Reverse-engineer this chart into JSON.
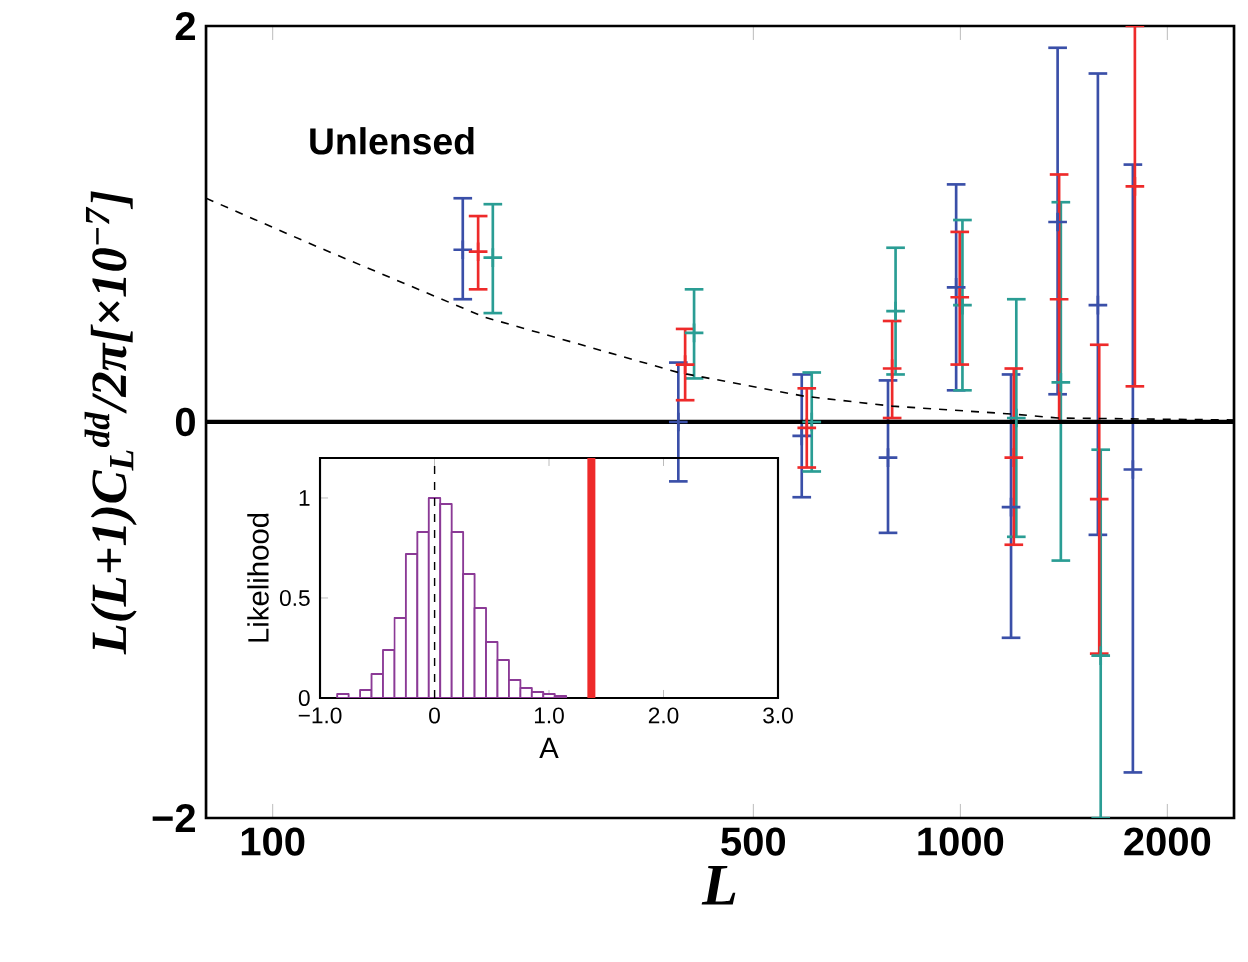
{
  "chart_data": [
    {
      "type": "scatter",
      "xlabel": "L",
      "ylabel": "L(L+1)C$_{L}$$^{dd}$/2π[×10$^{−7}$]",
      "log": "x",
      "xlim": [
        80,
        2500
      ],
      "ylim": [
        -2,
        2
      ],
      "xticks": [
        100,
        500,
        1000,
        2000
      ],
      "yticks": [
        {
          "value": -2,
          "label": "−2"
        },
        0,
        2
      ],
      "annotations": [
        "Unlensed"
      ],
      "ref_lines": [
        {
          "axis": "y",
          "value": 0,
          "color": "#000000"
        }
      ],
      "series": [
        {
          "color": "#3a4fa8",
          "marker": "cross",
          "x": [
            189,
            389,
            588,
            785,
            986,
            1185,
            1385,
            1585,
            1782
          ],
          "values": [
            0.87,
            0.0,
            -0.07,
            -0.18,
            0.68,
            -0.43,
            1.01,
            0.59,
            -0.24
          ],
          "errors": [
            [
              0.62,
              1.13
            ],
            [
              -0.3,
              0.3
            ],
            [
              -0.38,
              0.24
            ],
            [
              -0.56,
              0.21
            ],
            [
              0.16,
              1.2
            ],
            [
              -1.09,
              0.24
            ],
            [
              0.14,
              1.89
            ],
            [
              -0.57,
              1.76
            ],
            [
              -1.77,
              1.3
            ]
          ]
        },
        {
          "color": "#2a9d94",
          "marker": "cross",
          "x": [
            209,
            410,
            608,
            805,
            1007,
            1206,
            1400,
            1600
          ],
          "values": [
            0.83,
            0.45,
            0.0,
            0.56,
            0.59,
            0.02,
            0.2,
            -1.18
          ],
          "errors": [
            [
              0.55,
              1.1
            ],
            [
              0.22,
              0.67
            ],
            [
              -0.25,
              0.25
            ],
            [
              0.24,
              0.88
            ],
            [
              0.16,
              1.02
            ],
            [
              -0.58,
              0.62
            ],
            [
              -0.7,
              1.11
            ],
            [
              -2.0,
              -0.14
            ]
          ]
        },
        {
          "color": "#ee2a2a",
          "marker": "cross",
          "x": [
            199,
            398,
            598,
            796,
            998,
            1196,
            1392,
            1592,
            1794
          ],
          "values": [
            0.86,
            0.29,
            -0.03,
            0.27,
            0.63,
            -0.18,
            0.62,
            -0.39,
            1.19
          ],
          "errors": [
            [
              0.67,
              1.04
            ],
            [
              0.11,
              0.47
            ],
            [
              -0.23,
              0.17
            ],
            [
              0.02,
              0.51
            ],
            [
              0.29,
              0.96
            ],
            [
              -0.62,
              0.27
            ],
            [
              0.0,
              1.25
            ],
            [
              -1.17,
              0.39
            ],
            [
              0.18,
              2.0
            ]
          ]
        },
        {
          "type": "line",
          "line_style": "dashed",
          "color": "#000000",
          "x": [
            80,
            117,
            203,
            389,
            593,
            796,
            1190,
            1387,
            2500
          ],
          "values": [
            1.13,
            0.88,
            0.53,
            0.25,
            0.13,
            0.08,
            0.04,
            0.02,
            0.01
          ]
        }
      ]
    },
    {
      "type": "histogram",
      "xlabel": "A",
      "ylabel": "Likelihood",
      "color": "#8b3a96",
      "xlim": [
        -1,
        3
      ],
      "ylim": [
        0,
        1.2
      ],
      "xticks": [
        {
          "value": -1,
          "label": "−1.0"
        },
        0,
        {
          "value": 1,
          "label": "1.0"
        },
        {
          "value": 2,
          "label": "2.0"
        },
        {
          "value": 3,
          "label": "3.0"
        }
      ],
      "yticks": [
        0,
        0.5,
        1
      ],
      "bins": [
        -0.85,
        -0.75,
        -0.65,
        -0.55,
        -0.45,
        -0.35,
        -0.25,
        -0.15,
        -0.05,
        0.05,
        0.15,
        0.25,
        0.35,
        0.45,
        0.55,
        0.65,
        0.75,
        0.85,
        0.95,
        1.05,
        1.15
      ],
      "values": [
        0.02,
        0.0,
        0.04,
        0.12,
        0.24,
        0.4,
        0.72,
        0.83,
        1.0,
        0.97,
        0.83,
        0.62,
        0.45,
        0.28,
        0.19,
        0.09,
        0.05,
        0.03,
        0.02,
        0.01
      ],
      "ref_lines": [
        {
          "axis": "x",
          "value": 0,
          "color": "#000000",
          "line_style": "dashed"
        },
        {
          "axis": "x",
          "value": 1.37,
          "color": "#ee2a2a"
        }
      ]
    }
  ]
}
